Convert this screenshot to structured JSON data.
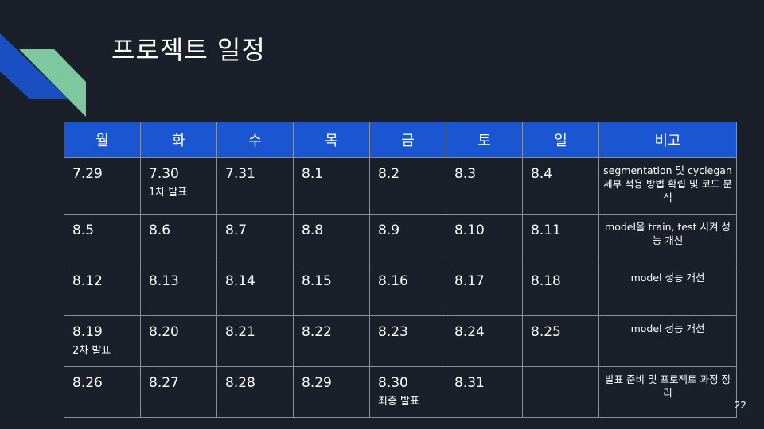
{
  "slide": {
    "title": "프로젝트 일정",
    "page_number": "22"
  },
  "colors": {
    "background": "#1b1f2a",
    "header_fill": "#1a55d2",
    "accent_blue": "#1a4fc2",
    "accent_green": "#7ec8a0"
  },
  "table": {
    "headers": [
      "월",
      "화",
      "수",
      "목",
      "금",
      "토",
      "일",
      "비고"
    ],
    "rows": [
      {
        "cells": [
          {
            "date": "7.29",
            "sub": ""
          },
          {
            "date": "7.30",
            "sub": "1차 발표"
          },
          {
            "date": "7.31",
            "sub": ""
          },
          {
            "date": "8.1",
            "sub": ""
          },
          {
            "date": "8.2",
            "sub": ""
          },
          {
            "date": "8.3",
            "sub": ""
          },
          {
            "date": "8.4",
            "sub": ""
          }
        ],
        "note": "segmentation 및 cyclegan 세부 적용 방법 확립 및 코드 분석"
      },
      {
        "cells": [
          {
            "date": "8.5",
            "sub": ""
          },
          {
            "date": "8.6",
            "sub": ""
          },
          {
            "date": "8.7",
            "sub": ""
          },
          {
            "date": "8.8",
            "sub": ""
          },
          {
            "date": "8.9",
            "sub": ""
          },
          {
            "date": "8.10",
            "sub": ""
          },
          {
            "date": "8.11",
            "sub": ""
          }
        ],
        "note": "model을 train, test 시켜 성능 개선"
      },
      {
        "cells": [
          {
            "date": "8.12",
            "sub": ""
          },
          {
            "date": "8.13",
            "sub": ""
          },
          {
            "date": "8.14",
            "sub": ""
          },
          {
            "date": "8.15",
            "sub": ""
          },
          {
            "date": "8.16",
            "sub": ""
          },
          {
            "date": "8.17",
            "sub": ""
          },
          {
            "date": "8.18",
            "sub": ""
          }
        ],
        "note": "model 성능 개선"
      },
      {
        "cells": [
          {
            "date": "8.19",
            "sub": "2차 발표"
          },
          {
            "date": "8.20",
            "sub": ""
          },
          {
            "date": "8.21",
            "sub": ""
          },
          {
            "date": "8.22",
            "sub": ""
          },
          {
            "date": "8.23",
            "sub": ""
          },
          {
            "date": "8.24",
            "sub": ""
          },
          {
            "date": "8.25",
            "sub": ""
          }
        ],
        "note": "model 성능 개선"
      },
      {
        "cells": [
          {
            "date": "8.26",
            "sub": ""
          },
          {
            "date": "8.27",
            "sub": ""
          },
          {
            "date": "8.28",
            "sub": ""
          },
          {
            "date": "8.29",
            "sub": ""
          },
          {
            "date": "8.30",
            "sub": "최종 발표"
          },
          {
            "date": "8.31",
            "sub": ""
          },
          {
            "date": "",
            "sub": ""
          }
        ],
        "note": "발표 준비 및 프로젝트 과정 정리"
      }
    ]
  }
}
